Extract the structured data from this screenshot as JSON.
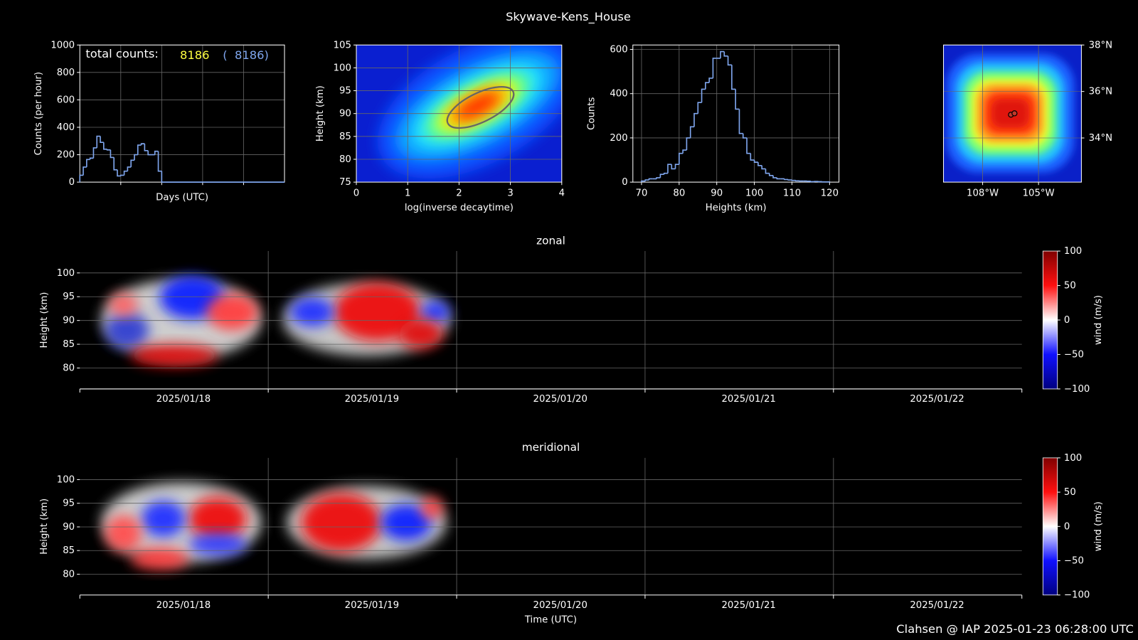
{
  "title": "Skywave-Kens_House",
  "footer": "Clahsen @ IAP 2025-01-23 06:28:00 UTC",
  "chart_data": [
    {
      "type": "histogram",
      "ylabel": "Counts (per hour)",
      "xlabel": "Days (UTC)",
      "annotations": [
        "total counts:",
        "8186",
        "(  8186)"
      ],
      "annotation_colors": [
        "#ffffff",
        "#ffff40",
        "#7fa6ee"
      ],
      "color": "#7fa6ee",
      "bins": [
        0,
        2,
        4,
        6,
        8,
        10,
        12,
        14,
        16,
        18,
        20,
        22,
        24,
        26,
        28,
        30,
        32,
        34,
        36,
        38,
        40,
        42,
        44,
        46,
        48,
        120
      ],
      "values": [
        50,
        110,
        165,
        175,
        250,
        335,
        290,
        240,
        235,
        180,
        90,
        45,
        50,
        80,
        110,
        160,
        200,
        270,
        280,
        230,
        200,
        200,
        225,
        80,
        0
      ],
      "xlim": [
        0,
        120
      ],
      "xticks": [
        24,
        48,
        72,
        96
      ],
      "xtick_labels": false,
      "ylim": [
        0,
        1000
      ],
      "yticks": [
        0,
        200,
        400,
        600,
        800,
        1000
      ],
      "grid": true
    },
    {
      "type": "density",
      "xlabel": "log(inverse decaytime)",
      "ylabel": "Height (km)",
      "xlim": [
        0,
        4
      ],
      "xticks": [
        0,
        1,
        2,
        3,
        4
      ],
      "ylim": [
        75,
        105
      ],
      "yticks": [
        75,
        80,
        85,
        90,
        95,
        100,
        105
      ],
      "grid": true
    },
    {
      "type": "histogram",
      "xlabel": "Heights (km)",
      "ylabel": "Counts",
      "color": "#7fa6ee",
      "bins": [
        70,
        71,
        72,
        73,
        74,
        75,
        76,
        77,
        78,
        79,
        80,
        81,
        82,
        83,
        84,
        85,
        86,
        87,
        88,
        89,
        90,
        91,
        92,
        93,
        94,
        95,
        96,
        97,
        98,
        99,
        100,
        101,
        102,
        103,
        104,
        105,
        106,
        107,
        108,
        109,
        110,
        111,
        112,
        113,
        114,
        115,
        116,
        117,
        118,
        119,
        120
      ],
      "values": [
        5,
        10,
        15,
        15,
        20,
        35,
        40,
        80,
        60,
        80,
        130,
        145,
        200,
        250,
        310,
        360,
        420,
        450,
        470,
        560,
        560,
        590,
        570,
        530,
        420,
        330,
        220,
        200,
        130,
        100,
        90,
        75,
        60,
        40,
        30,
        20,
        15,
        15,
        12,
        10,
        8,
        6,
        5,
        5,
        4,
        2,
        3,
        2,
        1,
        1
      ],
      "xlim": [
        67.7,
        122.5
      ],
      "xticks": [
        70,
        80,
        90,
        100,
        110,
        120
      ],
      "ylim": [
        0,
        620
      ],
      "yticks": [
        0,
        200,
        400,
        600
      ],
      "grid": true
    },
    {
      "type": "map",
      "xlim": [
        -110.1,
        -102.7
      ],
      "ylim": [
        32.1,
        38
      ],
      "xticks": [
        {
          "value": -108,
          "label": "108°W"
        },
        {
          "value": -105,
          "label": "105°W"
        }
      ],
      "yticks": [
        {
          "value": 38,
          "label": "38°N"
        },
        {
          "value": 36,
          "label": "36°N"
        },
        {
          "value": 34,
          "label": "34°N"
        }
      ],
      "x": [
        -106.48,
        -106.29
      ],
      "y": [
        35.0,
        35.06
      ],
      "color": "#c0392b",
      "grid": true
    },
    {
      "type": "wind",
      "title": "zonal",
      "ylabel": "Height (km)",
      "categories": [
        "2025/01/18",
        "2025/01/19",
        "2025/01/20",
        "2025/01/21",
        "2025/01/22"
      ],
      "ylim": [
        75.6,
        104.6
      ],
      "yticks": [
        80,
        85,
        90,
        95,
        100
      ],
      "grid": true,
      "colorbar": {
        "label": "wind (m/s)",
        "ylim": [
          -100,
          100
        ],
        "yticks": [
          100,
          50,
          0,
          {
            "value": -50,
            "label": "−50"
          },
          {
            "value": -100,
            "label": "−100"
          }
        ]
      }
    },
    {
      "type": "wind",
      "title": "meridional",
      "ylabel": "Height (km)",
      "xlabel": "Time (UTC)",
      "categories": [
        "2025/01/18",
        "2025/01/19",
        "2025/01/20",
        "2025/01/21",
        "2025/01/22"
      ],
      "ylim": [
        75.6,
        104.6
      ],
      "yticks": [
        80,
        85,
        90,
        95,
        100
      ],
      "grid": true,
      "colorbar": {
        "label": "wind (m/s)",
        "ylim": [
          -100,
          100
        ],
        "yticks": [
          100,
          50,
          0,
          {
            "value": -50,
            "label": "−50"
          },
          {
            "value": -100,
            "label": "−100"
          }
        ]
      }
    }
  ]
}
